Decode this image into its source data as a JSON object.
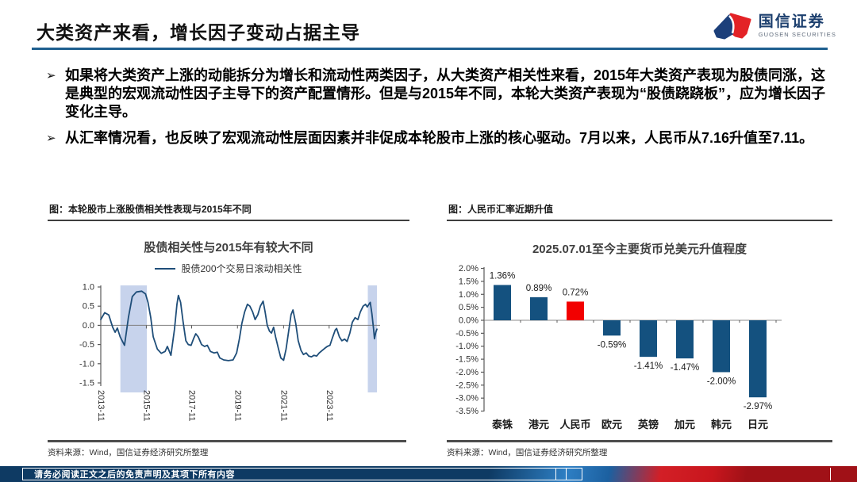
{
  "header": {
    "title": "大类资产来看，增长因子变动占据主导",
    "logo_cn": "国信证券",
    "logo_en": "GUOSEN SECURITIES"
  },
  "bullets": [
    {
      "marker": "➢",
      "text": "如果将大类资产上涨的动能拆分为增长和流动性两类因子，从大类资产相关性来看，2015年大类资产表现为股债同涨，这是典型的宏观流动性因子主导下的资产配置情形。但是与2015年不同，本轮大类资产表现为“股债跷跷板”，应为增长因子变化主导。"
    },
    {
      "marker": "➢",
      "text": "从汇率情况看，也反映了宏观流动性层面因素并非促成本轮股市上涨的核心驱动。7月以来，人民币从7.16升值至7.11。"
    }
  ],
  "left_panel": {
    "caption": "图：本轮股市上涨股债相关性表现与2015年不同",
    "source": "资料来源：Wind，国信证券经济研究所整理"
  },
  "right_panel": {
    "caption": "图：人民币汇率近期升值",
    "source": "资料来源：Wind，国信证券经济研究所整理"
  },
  "footer": {
    "disclaimer": "请务必阅读正文之后的免责声明及其项下所有内容"
  },
  "chart_data": [
    {
      "type": "line",
      "title": "股债相关性与2015年有较大不同",
      "legend": [
        "股债200个交易日滚动相关性"
      ],
      "line_color": "#1f4e79",
      "band_color": "#c7d3ec",
      "axis_color": "#595959",
      "zero_line_color": "#808080",
      "ylim": [
        -1.5,
        1.0
      ],
      "y_ticks": [
        "1.0",
        "0.5",
        "0.0",
        "-0.5",
        "-1.0",
        "-1.5"
      ],
      "y_tick_values": [
        1.0,
        0.5,
        0.0,
        -0.5,
        -1.0,
        -1.5
      ],
      "x_tick_labels": [
        "2013-11",
        "2015-11",
        "2017-11",
        "2019-11",
        "2021-11",
        "2023-11"
      ],
      "x_tick_pos": [
        0.0,
        0.165,
        0.329,
        0.495,
        0.662,
        0.827
      ],
      "highlight_bands": [
        [
          0.071,
          0.167
        ],
        [
          0.967,
          1.0
        ]
      ],
      "points": [
        [
          0.0,
          0.15
        ],
        [
          0.014,
          0.33
        ],
        [
          0.029,
          0.27
        ],
        [
          0.043,
          -0.05
        ],
        [
          0.052,
          -0.18
        ],
        [
          0.06,
          -0.07
        ],
        [
          0.07,
          -0.3
        ],
        [
          0.086,
          -0.52
        ],
        [
          0.1,
          0.2
        ],
        [
          0.114,
          0.75
        ],
        [
          0.129,
          0.87
        ],
        [
          0.148,
          0.89
        ],
        [
          0.162,
          0.82
        ],
        [
          0.171,
          0.6
        ],
        [
          0.181,
          0.2
        ],
        [
          0.19,
          -0.3
        ],
        [
          0.205,
          -0.62
        ],
        [
          0.219,
          -0.73
        ],
        [
          0.233,
          -0.68
        ],
        [
          0.241,
          -0.55
        ],
        [
          0.254,
          -0.78
        ],
        [
          0.267,
          -0.1
        ],
        [
          0.276,
          0.55
        ],
        [
          0.281,
          0.78
        ],
        [
          0.289,
          0.6
        ],
        [
          0.298,
          0.1
        ],
        [
          0.308,
          -0.4
        ],
        [
          0.317,
          -0.5
        ],
        [
          0.327,
          -0.52
        ],
        [
          0.336,
          -0.35
        ],
        [
          0.344,
          -0.22
        ],
        [
          0.353,
          -0.3
        ],
        [
          0.365,
          -0.5
        ],
        [
          0.376,
          -0.55
        ],
        [
          0.386,
          -0.52
        ],
        [
          0.397,
          -0.68
        ],
        [
          0.41,
          -0.72
        ],
        [
          0.422,
          -0.7
        ],
        [
          0.431,
          -0.85
        ],
        [
          0.445,
          -0.9
        ],
        [
          0.462,
          -0.92
        ],
        [
          0.479,
          -0.9
        ],
        [
          0.492,
          -0.72
        ],
        [
          0.502,
          -0.35
        ],
        [
          0.511,
          0.05
        ],
        [
          0.521,
          0.35
        ],
        [
          0.531,
          0.55
        ],
        [
          0.54,
          0.5
        ],
        [
          0.55,
          0.35
        ],
        [
          0.559,
          0.15
        ],
        [
          0.569,
          0.28
        ],
        [
          0.578,
          0.5
        ],
        [
          0.588,
          0.63
        ],
        [
          0.595,
          0.35
        ],
        [
          0.603,
          0.0
        ],
        [
          0.611,
          -0.15
        ],
        [
          0.618,
          -0.2
        ],
        [
          0.626,
          -0.05
        ],
        [
          0.633,
          -0.3
        ],
        [
          0.643,
          -0.6
        ],
        [
          0.652,
          -0.85
        ],
        [
          0.662,
          -0.91
        ],
        [
          0.671,
          -0.62
        ],
        [
          0.681,
          -0.12
        ],
        [
          0.689,
          0.28
        ],
        [
          0.696,
          0.4
        ],
        [
          0.706,
          0.05
        ],
        [
          0.715,
          -0.4
        ],
        [
          0.725,
          -0.65
        ],
        [
          0.734,
          -0.76
        ],
        [
          0.744,
          -0.72
        ],
        [
          0.753,
          -0.8
        ],
        [
          0.763,
          -0.82
        ],
        [
          0.772,
          -0.78
        ],
        [
          0.782,
          -0.8
        ],
        [
          0.791,
          -0.72
        ],
        [
          0.801,
          -0.66
        ],
        [
          0.811,
          -0.6
        ],
        [
          0.82,
          -0.55
        ],
        [
          0.83,
          -0.52
        ],
        [
          0.839,
          -0.32
        ],
        [
          0.849,
          -0.12
        ],
        [
          0.854,
          -0.08
        ],
        [
          0.864,
          -0.3
        ],
        [
          0.873,
          -0.4
        ],
        [
          0.883,
          -0.36
        ],
        [
          0.892,
          -0.42
        ],
        [
          0.902,
          -0.2
        ],
        [
          0.911,
          0.08
        ],
        [
          0.921,
          0.2
        ],
        [
          0.931,
          0.15
        ],
        [
          0.94,
          0.35
        ],
        [
          0.95,
          0.5
        ],
        [
          0.959,
          0.55
        ],
        [
          0.965,
          0.48
        ],
        [
          0.971,
          0.55
        ],
        [
          0.976,
          0.6
        ],
        [
          0.982,
          0.3
        ],
        [
          0.988,
          -0.1
        ],
        [
          0.991,
          -0.35
        ],
        [
          0.996,
          -0.18
        ],
        [
          1.0,
          -0.1
        ]
      ]
    },
    {
      "type": "bar",
      "title": "2025.07.01至今主要货币兑美元升值程度",
      "categories": [
        "泰铢",
        "港元",
        "人民币",
        "欧元",
        "英镑",
        "加元",
        "韩元",
        "日元"
      ],
      "values": [
        1.36,
        0.89,
        0.72,
        -0.59,
        -1.41,
        -1.47,
        -2.0,
        -2.97
      ],
      "labels": [
        "1.36%",
        "0.89%",
        "0.72%",
        "-0.59%",
        "-1.41%",
        "-1.47%",
        "-2.00%",
        "-2.97%"
      ],
      "bar_colors": [
        "#14517f",
        "#14517f",
        "#f20000",
        "#14517f",
        "#14517f",
        "#14517f",
        "#14517f",
        "#14517f"
      ],
      "default_bar_color": "#14517f",
      "highlight_bar_color": "#f20000",
      "axis_color": "#595959",
      "zero_line_color": "#8c8c8c",
      "ylim": [
        -3.5,
        2.0
      ],
      "y_ticks": [
        "2.0%",
        "1.5%",
        "1.0%",
        "0.5%",
        "0.0%",
        "-0.5%",
        "-1.0%",
        "-1.5%",
        "-2.0%",
        "-2.5%",
        "-3.0%",
        "-3.5%"
      ],
      "y_tick_values": [
        2.0,
        1.5,
        1.0,
        0.5,
        0.0,
        -0.5,
        -1.0,
        -1.5,
        -2.0,
        -2.5,
        -3.0,
        -3.5
      ]
    }
  ]
}
